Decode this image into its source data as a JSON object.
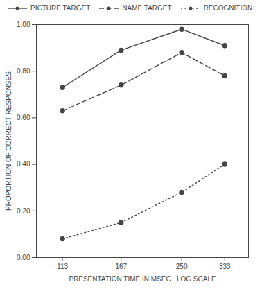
{
  "chart_data": {
    "type": "line",
    "xlabel": "PRESENTATION TIME IN MSEC.  LOG SCALE",
    "ylabel": "PROPORTION OF CORRECT RESPONSES",
    "x": [
      113,
      167,
      250,
      333
    ],
    "series": [
      {
        "name": "PICTURE TARGET",
        "color": "#454545",
        "values": [
          0.73,
          0.89,
          0.98,
          0.91
        ],
        "line_style": "solid",
        "marker": "circle"
      },
      {
        "name": "NAME TARGET",
        "color": "#454545",
        "values": [
          0.63,
          0.74,
          0.88,
          0.78
        ],
        "line_style": "dashed",
        "marker": "circle"
      },
      {
        "name": "RECOGNITION",
        "color": "#454545",
        "values": [
          0.08,
          0.15,
          0.28,
          0.4
        ],
        "line_style": "dotted",
        "marker": "circle"
      }
    ],
    "xlim": [
      95,
      390
    ],
    "xticks": [
      113,
      167,
      250,
      333
    ],
    "ylim": [
      0.0,
      1.0
    ],
    "yticks": [
      {
        "value": 0.0,
        "label": "0.00"
      },
      {
        "value": 0.2,
        "label": "0.20"
      },
      {
        "value": 0.4,
        "label": "0.40"
      },
      {
        "value": 0.6,
        "label": "0.60"
      },
      {
        "value": 0.8,
        "label": "0.80"
      },
      {
        "value": 1.0,
        "label": "1.00"
      }
    ],
    "log": "x",
    "grid": false,
    "legend": "top"
  }
}
